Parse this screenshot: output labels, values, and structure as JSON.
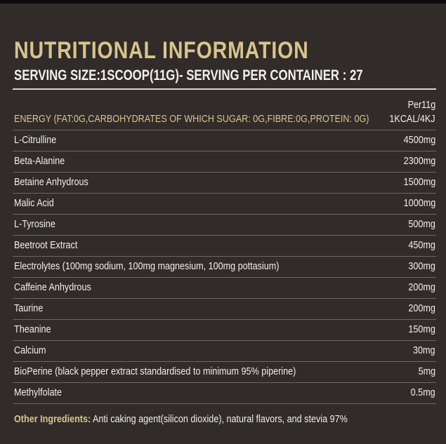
{
  "header": {
    "title": "NUTRITIONAL INFORMATION",
    "subtitle": "SERVING SIZE:1SCOOP(11G)- SERVING PER CONTAINER : 27"
  },
  "table": {
    "column_header": "Per11g",
    "energy": {
      "label": "ENERGY (FAT:0G,CARBOHYDRATES OF WHICH SUGAR: 0G,FIBRE:0G,PROTEIN: 0G)",
      "value": "1KCAL/4KJ"
    },
    "rows": [
      [
        "L-Citrulline",
        "4500mg"
      ],
      [
        "Beta-Alanine",
        "2300mg"
      ],
      [
        "Betaine Anhydrous",
        "1500mg"
      ],
      [
        "Malic Acid",
        "1000mg"
      ],
      [
        "L-Tyrosine",
        "500mg"
      ],
      [
        "Beetroot Extract",
        "450mg"
      ],
      [
        "Electrolytes (100mg sodium, 100mg magnesium, 100mg pottasium)",
        "300mg"
      ],
      [
        "Caffeine Anhydrous",
        "200mg"
      ],
      [
        "Taurine",
        "200mg"
      ],
      [
        "Theanine",
        "150mg"
      ],
      [
        "Calcium",
        "30mg"
      ],
      [
        "BioPerine (black pepper extract standardised to minimum 95% piperine)",
        "5mg"
      ],
      [
        "Methylfolate",
        "0.5mg"
      ]
    ]
  },
  "footer": {
    "label": "Other Ingredients:",
    "text": "Anti caking agent(silicon dioxide), natural flavors, and stevia 97%"
  }
}
